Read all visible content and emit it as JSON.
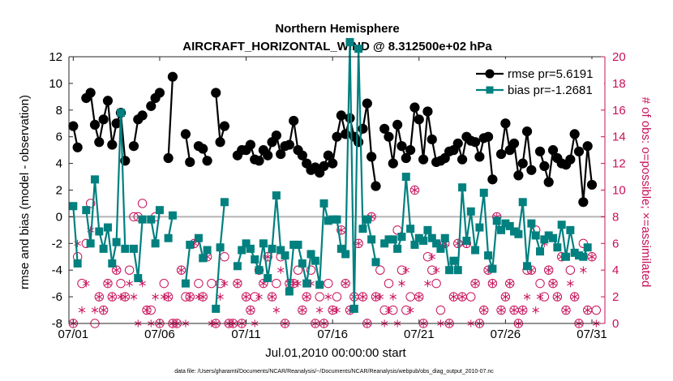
{
  "chart_data": {
    "type": "line",
    "title": "Northern Hemisphere",
    "subtitle": "AIRCRAFT_HORIZONTAL_WIND @ 8.312500e+02 hPa",
    "xlabel": "Jul.01,2010 00:00:00 start",
    "ylabel": "rmse and bias (model - observation)",
    "y2label": "# of obs: o=possible; ×=assimilated",
    "footnote": "data file: /Users/gharamti/Documents/NCAR/Reanalysis/~/Documents/NCAR/Reanalysis/webpub/obs_diag_output_2010-07.nc",
    "x_ticks": [
      "07/01",
      "07/06",
      "07/11",
      "07/16",
      "07/21",
      "07/26",
      "07/31"
    ],
    "x_tick_days": [
      1,
      6,
      11,
      16,
      21,
      26,
      31
    ],
    "xlim": [
      0.75,
      31.75
    ],
    "ylim": [
      -8,
      12
    ],
    "y_ticks": [
      -8,
      -6,
      -4,
      -2,
      0,
      2,
      4,
      6,
      8,
      10,
      12
    ],
    "y2lim": [
      0,
      20
    ],
    "y2_ticks": [
      0,
      2,
      4,
      6,
      8,
      10,
      12,
      14,
      16,
      18,
      20
    ],
    "day_step": 0.25,
    "x_start": 1.0,
    "series": [
      {
        "name": "rmse pr=5.6191",
        "color": "#000000",
        "marker": "circle",
        "values": [
          6.8,
          5.2,
          null,
          8.9,
          9.3,
          6.9,
          5.6,
          7.3,
          8.7,
          5.4,
          7.0,
          7.8,
          4.2,
          null,
          5.3,
          7.3,
          7.6,
          null,
          8.3,
          8.9,
          9.3,
          null,
          4.4,
          10.5,
          null,
          null,
          6.2,
          4.1,
          null,
          5.3,
          5.1,
          4.2,
          null,
          9.3,
          5.6,
          6.8,
          null,
          null,
          4.6,
          5.0,
          5.0,
          5.4,
          4.3,
          4.2,
          5.0,
          4.6,
          5.6,
          6.1,
          4.7,
          5.3,
          5.4,
          7.2,
          5.0,
          4.6,
          4.0,
          3.5,
          3.7,
          3.3,
          3.8,
          4.6,
          4.0,
          6.0,
          7.6,
          6.2,
          7.4,
          6.0,
          5.6,
          6.6,
          8.5,
          4.5,
          2.3,
          null,
          6.6,
          6.0,
          4.0,
          6.9,
          5.3,
          4.4,
          5.0,
          8.2,
          7.3,
          4.3,
          7.9,
          5.8,
          4.1,
          4.2,
          4.4,
          4.9,
          5.0,
          5.5,
          4.3,
          6.0,
          5.7,
          5.6,
          4.5,
          5.9,
          6.0,
          2.8,
          null,
          4.7,
          7.0,
          5.0,
          5.5,
          3.1,
          4.0,
          6.4,
          3.5,
          null,
          4.9,
          3.8,
          2.6,
          5.0,
          4.4,
          4.0,
          3.9,
          4.3,
          6.2,
          4.9,
          1.1,
          5.3,
          2.4
        ]
      },
      {
        "name": "bias pr=-1.2681",
        "color": "#00807f",
        "marker": "square",
        "values": [
          0.8,
          -3.5,
          null,
          0.5,
          -2.0,
          2.8,
          -1.1,
          -2.4,
          -0.8,
          -3.5,
          -1.9,
          7.8,
          -2.4,
          null,
          -2.4,
          -4.6,
          -0.2,
          null,
          -0.2,
          -2.0,
          0.5,
          null,
          -1.6,
          0.1,
          null,
          null,
          -5.0,
          -2.1,
          null,
          -1.6,
          -3.1,
          -2.5,
          null,
          -6.9,
          -2.3,
          1.1,
          null,
          null,
          -3.7,
          -2.5,
          -2.0,
          -2.4,
          -3.2,
          -4.0,
          -2.0,
          -4.6,
          -2.4,
          1.6,
          -2.5,
          -2.9,
          -5.6,
          -2.1,
          -2.1,
          -3.5,
          -5.0,
          -2.8,
          -3.3,
          -5.1,
          1.0,
          -0.3,
          -0.2,
          -0.2,
          -2.4,
          -2.8,
          13.1,
          -6.9,
          12.6,
          -0.9,
          -0.2,
          -1.7,
          -3.4,
          null,
          -2.0,
          -1.7,
          -1.7,
          -2.4,
          -1.5,
          3.0,
          -0.9,
          -2.1,
          -1.6,
          -1.8,
          -1.0,
          -1.6,
          -2.0,
          -2.4,
          -1.6,
          -4.0,
          -3.3,
          -4.0,
          2.2,
          -1.8,
          0.4,
          -2.5,
          -0.8,
          1.8,
          -2.9,
          -3.9,
          -0.3,
          -1.0,
          -0.5,
          -0.7,
          -1.1,
          -1.3,
          1.1,
          -3.7,
          -0.5,
          -1.4,
          -2.6,
          -1.7,
          -1.4,
          -1.6,
          -2.3,
          -0.6,
          -3.0,
          -1.0,
          -2.7,
          -2.9,
          -3.0,
          -2.3
        ]
      }
    ],
    "obs_possible": [
      0,
      5,
      3,
      6,
      9,
      0,
      2,
      1,
      3,
      2,
      4,
      3,
      2,
      4,
      8,
      8,
      9,
      1,
      1,
      8,
      0,
      3,
      2,
      0,
      0,
      4,
      2,
      2,
      6,
      3,
      2,
      5,
      3,
      0,
      3,
      5,
      0,
      0,
      3,
      0,
      2,
      1,
      2,
      4,
      3,
      5,
      2,
      3,
      5,
      0,
      3,
      3,
      4,
      1,
      2,
      4,
      0,
      2,
      0,
      3,
      1,
      2,
      7,
      3,
      1,
      2,
      6,
      2,
      0,
      8,
      2,
      4,
      1,
      3,
      1,
      7,
      4,
      1,
      2,
      10,
      2,
      0,
      5,
      4,
      3,
      1,
      6,
      0,
      2,
      6,
      2,
      6,
      2,
      3,
      0,
      1,
      4,
      3,
      8,
      1,
      2,
      3,
      1,
      0,
      1,
      4,
      4,
      7,
      3,
      2,
      4,
      3,
      2,
      5,
      1,
      4,
      2,
      0,
      6,
      1,
      5,
      1
    ],
    "obs_assimilated": [
      0,
      6,
      1,
      3,
      7,
      1,
      2,
      1,
      3,
      2,
      4,
      2,
      2,
      3,
      2,
      0,
      3,
      1,
      0,
      2,
      0,
      2,
      2,
      0,
      0,
      4,
      0,
      2,
      6,
      2,
      2,
      5,
      0,
      0,
      2,
      3,
      0,
      0,
      3,
      0,
      2,
      1,
      0,
      2,
      3,
      5,
      2,
      1,
      4,
      0,
      3,
      3,
      3,
      1,
      2,
      3,
      0,
      1,
      0,
      2,
      1,
      1,
      7,
      3,
      1,
      2,
      6,
      2,
      0,
      8,
      2,
      2,
      0,
      1,
      2,
      0,
      3,
      4,
      1,
      10,
      2,
      0,
      3,
      5,
      4,
      0,
      6,
      0,
      2,
      6,
      2,
      6,
      0,
      3,
      0,
      1,
      4,
      3,
      8,
      1,
      2,
      3,
      1,
      0,
      1,
      2,
      4,
      1,
      2,
      6,
      4,
      3,
      2,
      5,
      1,
      3,
      2,
      0,
      4,
      1,
      5,
      0
    ],
    "legend": [
      {
        "label": "rmse pr=5.6191"
      },
      {
        "label": "bias pr=-1.2681"
      }
    ],
    "legend_position": "top-right",
    "zero_line": true
  }
}
